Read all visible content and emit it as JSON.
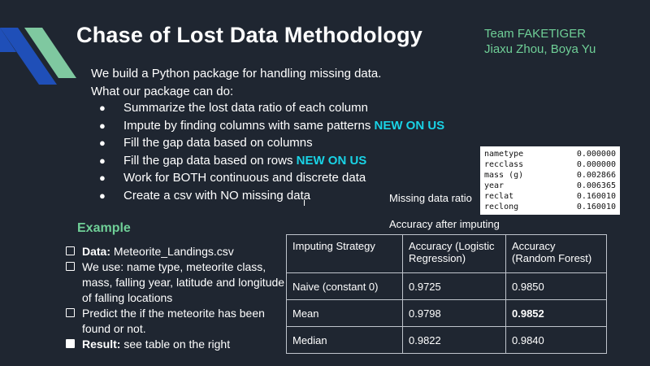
{
  "slide": {
    "title": "Chase of Lost Data Methodology",
    "team_name": "Team FAKETIGER",
    "authors": "Jiaxu Zhou, Boya Yu",
    "accent_green": "#6fcf97",
    "accent_cyan": "#19d3e6",
    "stripe_blue": "#1f4fb8"
  },
  "intro": {
    "line1": "We build a  Python package for handling missing data.",
    "line2": "What our package can do:"
  },
  "features": [
    {
      "text": "Summarize the lost data ratio of each column",
      "tag": ""
    },
    {
      "text": "Impute by finding columns with same patterns ",
      "tag": "NEW ON US"
    },
    {
      "text": "Fill the gap data based on columns",
      "tag": ""
    },
    {
      "text": "Fill the gap data based on rows ",
      "tag": "NEW ON US"
    },
    {
      "text": "Work for BOTH continuous and discrete data",
      "tag": ""
    },
    {
      "text": "Create a csv with NO missing data",
      "tag": ""
    }
  ],
  "example": {
    "heading": "Example",
    "items": [
      {
        "bold": "Data:",
        "text": " Meteorite_Landings.csv"
      },
      {
        "bold": "",
        "text": "We use: name type, meteorite class, mass, falling year, latitude and longitude of falling locations"
      },
      {
        "bold": "",
        "text": "Predict the if the meteorite has been found or not."
      },
      {
        "bold": "Result:",
        "text": " see table on the right"
      }
    ]
  },
  "missing_ratio": {
    "caption": "Missing data ratio",
    "rows": [
      {
        "name": "nametype",
        "value": "0.000000"
      },
      {
        "name": "recclass",
        "value": "0.000000"
      },
      {
        "name": "mass (g)",
        "value": "0.002866"
      },
      {
        "name": "year",
        "value": "0.006365"
      },
      {
        "name": "reclat",
        "value": "0.160010"
      },
      {
        "name": "reclong",
        "value": "0.160010"
      }
    ]
  },
  "cursor_glyph": "I",
  "results": {
    "caption": "Accuracy after imputing",
    "headers": [
      "Imputing Strategy",
      "Accuracy (Logistic Regression)",
      "Accuracy (Random Forest)"
    ],
    "rows": [
      [
        "Naive (constant 0)",
        "0.9725",
        "0.9850"
      ],
      [
        "Mean",
        "0.9798",
        "0.9852"
      ],
      [
        "Median",
        "0.9822",
        "0.9840"
      ]
    ]
  }
}
